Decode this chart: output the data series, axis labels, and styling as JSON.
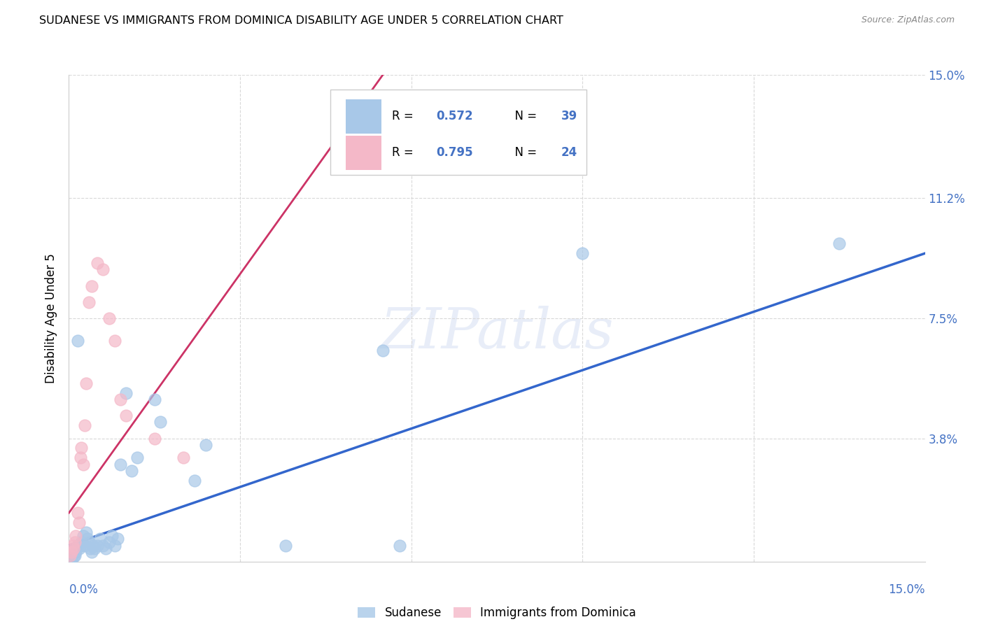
{
  "title": "SUDANESE VS IMMIGRANTS FROM DOMINICA DISABILITY AGE UNDER 5 CORRELATION CHART",
  "source": "Source: ZipAtlas.com",
  "ylabel": "Disability Age Under 5",
  "xlim": [
    0.0,
    15.0
  ],
  "ylim": [
    0.0,
    15.0
  ],
  "ytick_values": [
    0.0,
    3.8,
    7.5,
    11.2,
    15.0
  ],
  "ytick_labels": [
    "",
    "3.8%",
    "7.5%",
    "11.2%",
    "15.0%"
  ],
  "grid_color": "#d9d9d9",
  "watermark_text": "ZIPatlas",
  "legend_blue_R": "0.572",
  "legend_blue_N": "39",
  "legend_pink_R": "0.795",
  "legend_pink_N": "24",
  "blue_scatter_color": "#a8c8e8",
  "pink_scatter_color": "#f4b8c8",
  "blue_line_color": "#3366cc",
  "pink_line_color": "#cc3366",
  "label_color": "#4472c4",
  "background_color": "#ffffff",
  "sudanese_x": [
    0.05,
    0.08,
    0.1,
    0.12,
    0.15,
    0.18,
    0.2,
    0.22,
    0.25,
    0.28,
    0.3,
    0.32,
    0.35,
    0.38,
    0.4,
    0.42,
    0.45,
    0.5,
    0.55,
    0.6,
    0.65,
    0.7,
    0.75,
    0.8,
    0.85,
    0.9,
    1.0,
    1.1,
    1.2,
    1.5,
    1.6,
    2.2,
    2.4,
    3.8,
    5.8,
    9.0,
    5.5,
    13.5,
    0.15
  ],
  "sudanese_y": [
    0.1,
    0.15,
    0.2,
    0.3,
    0.5,
    0.4,
    0.5,
    0.6,
    0.8,
    0.5,
    0.9,
    0.7,
    0.6,
    0.4,
    0.3,
    0.5,
    0.4,
    0.5,
    0.7,
    0.5,
    0.4,
    0.6,
    0.8,
    0.5,
    0.7,
    3.0,
    5.2,
    2.8,
    3.2,
    5.0,
    4.3,
    2.5,
    3.6,
    0.5,
    0.5,
    9.5,
    6.5,
    9.8,
    6.8
  ],
  "dominica_x": [
    0.02,
    0.05,
    0.07,
    0.08,
    0.1,
    0.12,
    0.15,
    0.18,
    0.2,
    0.22,
    0.25,
    0.28,
    0.3,
    0.35,
    0.4,
    0.5,
    0.6,
    0.7,
    0.8,
    0.9,
    1.0,
    1.5,
    2.0,
    5.5
  ],
  "dominica_y": [
    0.2,
    0.3,
    0.5,
    0.4,
    0.6,
    0.8,
    1.5,
    1.2,
    3.2,
    3.5,
    3.0,
    4.2,
    5.5,
    8.0,
    8.5,
    9.2,
    9.0,
    7.5,
    6.8,
    5.0,
    4.5,
    3.8,
    3.2,
    12.5
  ],
  "blue_trend_x0": 0.0,
  "blue_trend_y0": 0.5,
  "blue_trend_x1": 15.0,
  "blue_trend_y1": 9.5,
  "pink_trend_x0": 0.0,
  "pink_trend_y0": 1.5,
  "pink_trend_x1": 5.5,
  "pink_trend_y1": 15.0
}
